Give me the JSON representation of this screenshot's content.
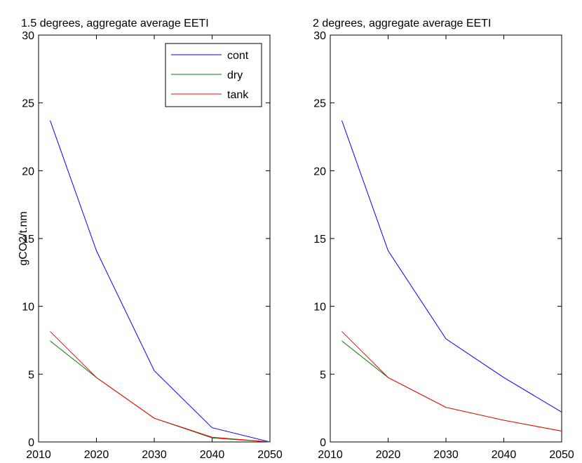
{
  "chart_data": [
    {
      "type": "line",
      "title": "1.5 degrees, aggregate average EETI",
      "ylabel": "gCO2/t.nm",
      "x": [
        2012,
        2020,
        2030,
        2040,
        2050
      ],
      "series": [
        {
          "name": "cont",
          "color": "#0000ff",
          "values": [
            23.7,
            14.1,
            5.25,
            1.05,
            0
          ]
        },
        {
          "name": "dry",
          "color": "#008000",
          "values": [
            7.45,
            4.75,
            1.75,
            0.3,
            0
          ]
        },
        {
          "name": "tank",
          "color": "#ff0000",
          "values": [
            8.15,
            4.75,
            1.75,
            0.35,
            0
          ]
        }
      ],
      "xlim": [
        2010,
        2050
      ],
      "xticks": [
        2010,
        2020,
        2030,
        2040,
        2050
      ],
      "ylim": [
        0,
        30
      ],
      "yticks": [
        0,
        5,
        10,
        15,
        20,
        25,
        30
      ],
      "legend": "top-right"
    },
    {
      "type": "line",
      "title": "2 degrees, aggregate average EETI",
      "x": [
        2012,
        2020,
        2030,
        2040,
        2050
      ],
      "series": [
        {
          "color": "#0000ff",
          "values": [
            23.7,
            14.1,
            7.6,
            4.75,
            2.2
          ]
        },
        {
          "color": "#008000",
          "values": [
            7.45,
            4.75,
            2.55,
            1.6,
            0.8
          ]
        },
        {
          "color": "#ff0000",
          "values": [
            8.15,
            4.75,
            2.55,
            1.6,
            0.8
          ]
        }
      ],
      "xlim": [
        2010,
        2050
      ],
      "xticks": [
        2010,
        2020,
        2030,
        2040,
        2050
      ],
      "ylim": [
        0,
        30
      ],
      "yticks": [
        0,
        5,
        10,
        15,
        20,
        25,
        30
      ]
    }
  ]
}
